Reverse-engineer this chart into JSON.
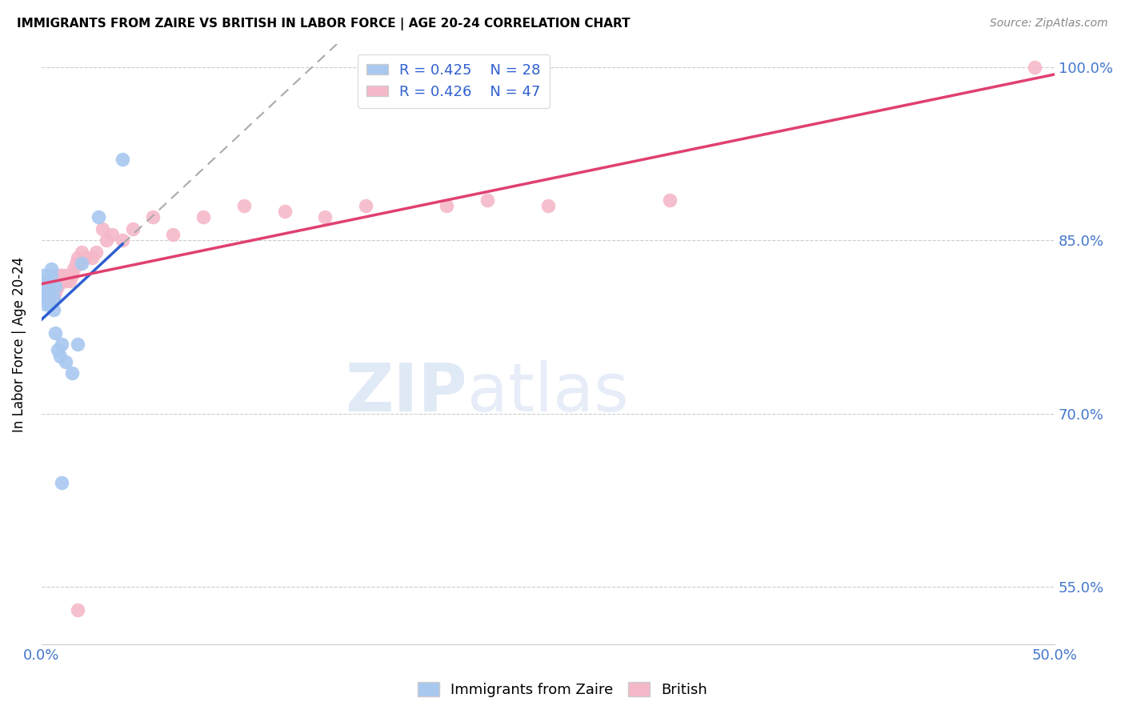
{
  "title": "IMMIGRANTS FROM ZAIRE VS BRITISH IN LABOR FORCE | AGE 20-24 CORRELATION CHART",
  "source": "Source: ZipAtlas.com",
  "ylabel": "In Labor Force | Age 20-24",
  "xlim": [
    0.0,
    0.5
  ],
  "ylim": [
    0.5,
    1.02
  ],
  "ytick_positions": [
    0.55,
    0.7,
    0.85,
    1.0
  ],
  "ytick_labels": [
    "55.0%",
    "70.0%",
    "85.0%",
    "100.0%"
  ],
  "blue_r": 0.425,
  "blue_n": 28,
  "pink_r": 0.426,
  "pink_n": 47,
  "blue_x": [
    0.001,
    0.001,
    0.001,
    0.002,
    0.002,
    0.002,
    0.002,
    0.003,
    0.003,
    0.003,
    0.004,
    0.004,
    0.005,
    0.005,
    0.006,
    0.006,
    0.007,
    0.007,
    0.008,
    0.009,
    0.01,
    0.012,
    0.015,
    0.018,
    0.02,
    0.028,
    0.04,
    0.01
  ],
  "blue_y": [
    0.805,
    0.81,
    0.82,
    0.8,
    0.81,
    0.795,
    0.815,
    0.8,
    0.805,
    0.815,
    0.795,
    0.81,
    0.82,
    0.825,
    0.79,
    0.8,
    0.81,
    0.77,
    0.755,
    0.75,
    0.76,
    0.745,
    0.735,
    0.76,
    0.83,
    0.87,
    0.92,
    0.64
  ],
  "pink_x": [
    0.001,
    0.002,
    0.003,
    0.004,
    0.005,
    0.005,
    0.006,
    0.006,
    0.007,
    0.007,
    0.008,
    0.008,
    0.009,
    0.009,
    0.01,
    0.01,
    0.011,
    0.012,
    0.013,
    0.014,
    0.015,
    0.016,
    0.017,
    0.018,
    0.019,
    0.02,
    0.022,
    0.025,
    0.027,
    0.03,
    0.032,
    0.035,
    0.04,
    0.045,
    0.055,
    0.065,
    0.08,
    0.1,
    0.12,
    0.14,
    0.16,
    0.2,
    0.22,
    0.25,
    0.31,
    0.49,
    0.018
  ],
  "pink_y": [
    0.8,
    0.805,
    0.81,
    0.8,
    0.81,
    0.815,
    0.8,
    0.81,
    0.805,
    0.815,
    0.81,
    0.82,
    0.815,
    0.82,
    0.815,
    0.82,
    0.82,
    0.815,
    0.82,
    0.815,
    0.82,
    0.825,
    0.83,
    0.835,
    0.83,
    0.84,
    0.835,
    0.835,
    0.84,
    0.86,
    0.85,
    0.855,
    0.85,
    0.86,
    0.87,
    0.855,
    0.87,
    0.88,
    0.875,
    0.87,
    0.88,
    0.88,
    0.885,
    0.88,
    0.885,
    1.0,
    0.53
  ],
  "blue_color": "#a8c8f0",
  "pink_color": "#f5b8c8",
  "blue_line_color": "#3060d0",
  "pink_line_color": "#e04070",
  "background_color": "#ffffff",
  "axis_label_color": "#4477cc",
  "grid_color": "#cccccc"
}
